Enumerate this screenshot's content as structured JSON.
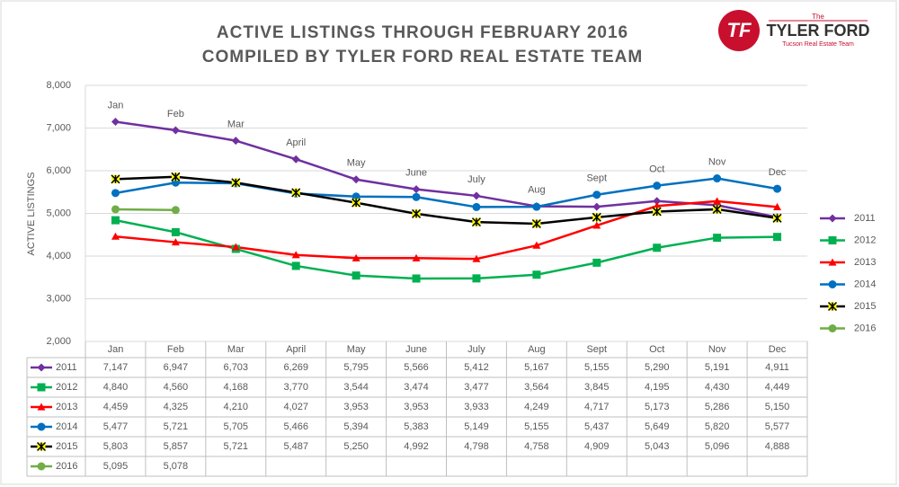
{
  "logo": {
    "mark": "TF",
    "top": "The",
    "name": "TYLER FORD",
    "tagline": "Tucson Real Estate Team"
  },
  "chart_data": {
    "type": "line",
    "title": "ACTIVE LISTINGS THROUGH FEBRUARY 2016",
    "subtitle": "COMPILED BY TYLER FORD REAL ESTATE TEAM",
    "y_label": "ACTIVE LISTINGS",
    "categories": [
      "Jan",
      "Feb",
      "Mar",
      "April",
      "May",
      "June",
      "July",
      "Aug",
      "Sept",
      "Oct",
      "Nov",
      "Dec"
    ],
    "ylim": [
      2000,
      8000
    ],
    "yticks": [
      {
        "value": 2000,
        "label": "2,000"
      },
      {
        "value": 3000,
        "label": "3,000"
      },
      {
        "value": 4000,
        "label": "4,000"
      },
      {
        "value": 5000,
        "label": "5,000"
      },
      {
        "value": 6000,
        "label": "6,000"
      },
      {
        "value": 7000,
        "label": "7,000"
      },
      {
        "value": 8000,
        "label": "8,000"
      }
    ],
    "grid": true,
    "legend": "right",
    "series": [
      {
        "name": "2011",
        "color": "#7030a0",
        "marker": "diamond",
        "values": [
          7147,
          6947,
          6703,
          6269,
          5795,
          5566,
          5412,
          5167,
          5155,
          5290,
          5191,
          4911
        ],
        "value_labels": [
          "7,147",
          "6,947",
          "6,703",
          "6,269",
          "5,795",
          "5,566",
          "5,412",
          "5,167",
          "5,155",
          "5,290",
          "5,191",
          "4,911"
        ]
      },
      {
        "name": "2012",
        "color": "#00b050",
        "marker": "square",
        "values": [
          4840,
          4560,
          4168,
          3770,
          3544,
          3474,
          3477,
          3564,
          3845,
          4195,
          4430,
          4449
        ],
        "value_labels": [
          "4,840",
          "4,560",
          "4,168",
          "3,770",
          "3,544",
          "3,474",
          "3,477",
          "3,564",
          "3,845",
          "4,195",
          "4,430",
          "4,449"
        ]
      },
      {
        "name": "2013",
        "color": "#ff0000",
        "marker": "triangle",
        "values": [
          4459,
          4325,
          4210,
          4027,
          3953,
          3953,
          3933,
          4249,
          4717,
          5173,
          5286,
          5150
        ],
        "value_labels": [
          "4,459",
          "4,325",
          "4,210",
          "4,027",
          "3,953",
          "3,953",
          "3,933",
          "4,249",
          "4,717",
          "5,173",
          "5,286",
          "5,150"
        ]
      },
      {
        "name": "2014",
        "color": "#0070c0",
        "marker": "circle",
        "values": [
          5477,
          5721,
          5705,
          5466,
          5394,
          5383,
          5149,
          5155,
          5437,
          5649,
          5820,
          5577
        ],
        "value_labels": [
          "5,477",
          "5,721",
          "5,705",
          "5,466",
          "5,394",
          "5,383",
          "5,149",
          "5,155",
          "5,437",
          "5,649",
          "5,820",
          "5,577"
        ]
      },
      {
        "name": "2015",
        "color": "#000000",
        "marker": "star",
        "values": [
          5803,
          5857,
          5721,
          5487,
          5250,
          4992,
          4798,
          4758,
          4909,
          5043,
          5096,
          4888
        ],
        "value_labels": [
          "5,803",
          "5,857",
          "5,721",
          "5,487",
          "5,250",
          "4,992",
          "4,798",
          "4,758",
          "4,909",
          "5,043",
          "5,096",
          "4,888"
        ]
      },
      {
        "name": "2016",
        "color": "#70ad47",
        "marker": "circle",
        "values": [
          5095,
          5078,
          null,
          null,
          null,
          null,
          null,
          null,
          null,
          null,
          null,
          null
        ],
        "value_labels": [
          "5,095",
          "5,078",
          null,
          null,
          null,
          null,
          null,
          null,
          null,
          null,
          null,
          null
        ]
      }
    ]
  }
}
